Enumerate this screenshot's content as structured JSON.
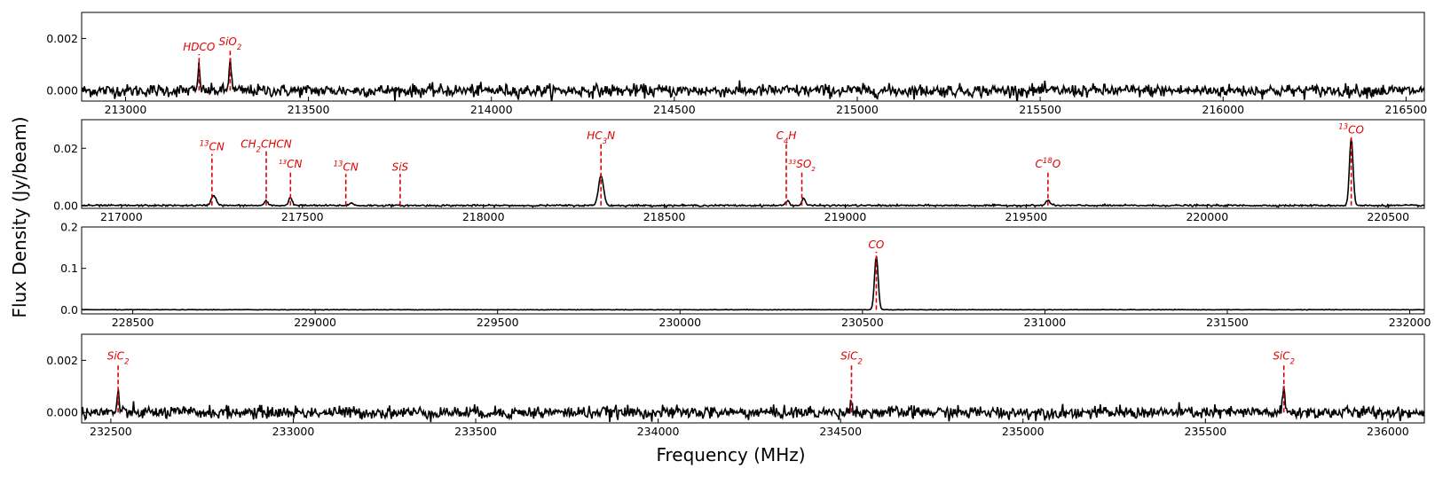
{
  "chart_data": {
    "type": "line",
    "xlabel": "Frequency (MHz)",
    "ylabel": "Flux Density (Jy/beam)",
    "colors": {
      "spectrum": "#000000",
      "line_marker": "#e00000"
    },
    "panels": [
      {
        "xlim": [
          212880,
          216550
        ],
        "ylim": [
          -0.0004,
          0.003
        ],
        "xticks": [
          213000,
          213500,
          214000,
          214500,
          215000,
          215500,
          216000,
          216500
        ],
        "xtick_labels": [
          "213000",
          "213500",
          "214000",
          "214500",
          "215000",
          "215500",
          "216000",
          "216500"
        ],
        "yticks": [
          0.0,
          0.002
        ],
        "ytick_labels": [
          "0.000",
          "0.002"
        ],
        "noise": 0.00012,
        "peaks": [
          {
            "freq": 213201,
            "amp": 0.0009,
            "width": 3.0
          },
          {
            "freq": 213286,
            "amp": 0.0013,
            "width": 3.0
          }
        ],
        "lines": [
          {
            "freq": 213201,
            "top": 0.0014,
            "text": [
              {
                "t": "HDCO"
              }
            ]
          },
          {
            "freq": 213286,
            "top": 0.0016,
            "text": [
              {
                "t": "SiO"
              },
              {
                "t": "2",
                "sub": true
              }
            ]
          }
        ]
      },
      {
        "xlim": [
          216890,
          220600
        ],
        "ylim": [
          -0.001,
          0.03
        ],
        "xticks": [
          217000,
          217500,
          218000,
          218500,
          219000,
          219500,
          220000,
          220500
        ],
        "xtick_labels": [
          "217000",
          "217500",
          "218000",
          "218500",
          "219000",
          "219500",
          "220000",
          "220500"
        ],
        "yticks": [
          0.0,
          0.02
        ],
        "ytick_labels": [
          "0.00",
          "0.02"
        ],
        "noise": 0.00015,
        "peaks": [
          {
            "freq": 217255,
            "amp": 0.0035,
            "width": 7
          },
          {
            "freq": 217400,
            "amp": 0.0015,
            "width": 5
          },
          {
            "freq": 217467,
            "amp": 0.0028,
            "width": 5
          },
          {
            "freq": 217635,
            "amp": 0.0008,
            "width": 6
          },
          {
            "freq": 218325,
            "amp": 0.0105,
            "width": 7
          },
          {
            "freq": 218840,
            "amp": 0.0018,
            "width": 5
          },
          {
            "freq": 218885,
            "amp": 0.0025,
            "width": 5
          },
          {
            "freq": 219560,
            "amp": 0.0018,
            "width": 6
          },
          {
            "freq": 220398,
            "amp": 0.0235,
            "width": 5
          }
        ],
        "lines": [
          {
            "freq": 217250,
            "top": 0.018,
            "text": [
              {
                "t": "13",
                "sup": true
              },
              {
                "t": "CN"
              }
            ]
          },
          {
            "freq": 217400,
            "top": 0.019,
            "text": [
              {
                "t": "CH"
              },
              {
                "t": "2",
                "sub": true
              },
              {
                "t": "CHCN"
              }
            ]
          },
          {
            "freq": 217467,
            "top": 0.012,
            "small": true,
            "text": [
              {
                "t": "13",
                "sup": true
              },
              {
                "t": "CN"
              }
            ]
          },
          {
            "freq": 217620,
            "top": 0.011,
            "text": [
              {
                "t": "13",
                "sup": true
              },
              {
                "t": "CN"
              }
            ]
          },
          {
            "freq": 217770,
            "top": 0.011,
            "text": [
              {
                "t": "SiS"
              }
            ]
          },
          {
            "freq": 218325,
            "top": 0.022,
            "text": [
              {
                "t": "HC"
              },
              {
                "t": "3",
                "sub": true
              },
              {
                "t": "N"
              }
            ]
          },
          {
            "freq": 218837,
            "top": 0.022,
            "text": [
              {
                "t": "C"
              },
              {
                "t": "4",
                "sub": true
              },
              {
                "t": "H"
              }
            ]
          },
          {
            "freq": 218880,
            "top": 0.012,
            "small": true,
            "text": [
              {
                "t": "33",
                "sup": true
              },
              {
                "t": "SO"
              },
              {
                "t": "2",
                "sub": true
              }
            ]
          },
          {
            "freq": 219560,
            "top": 0.012,
            "text": [
              {
                "t": "C"
              },
              {
                "t": "18",
                "sup": true
              },
              {
                "t": "O"
              }
            ]
          },
          {
            "freq": 220398,
            "top": 0.024,
            "text": [
              {
                "t": "13",
                "sup": true
              },
              {
                "t": "CO"
              }
            ]
          }
        ]
      },
      {
        "xlim": [
          228360,
          232040
        ],
        "ylim": [
          -0.01,
          0.2
        ],
        "xticks": [
          228500,
          229000,
          229500,
          230000,
          230500,
          231000,
          231500,
          232000
        ],
        "xtick_labels": [
          "228500",
          "229000",
          "229500",
          "230000",
          "230500",
          "231000",
          "231500",
          "232000"
        ],
        "yticks": [
          0.0,
          0.1,
          0.2
        ],
        "ytick_labels": [
          "0.0",
          "0.1",
          "0.2"
        ],
        "noise": 0.0003,
        "peaks": [
          {
            "freq": 230538,
            "amp": 0.13,
            "width": 5
          }
        ],
        "lines": [
          {
            "freq": 230538,
            "top": 0.14,
            "text": [
              {
                "t": "CO"
              }
            ]
          }
        ]
      },
      {
        "xlim": [
          232420,
          236100
        ],
        "ylim": [
          -0.0004,
          0.003
        ],
        "xticks": [
          232500,
          233000,
          233500,
          234000,
          234500,
          235000,
          235500,
          236000
        ],
        "xtick_labels": [
          "232500",
          "233000",
          "233500",
          "234000",
          "234500",
          "235000",
          "235500",
          "236000"
        ],
        "yticks": [
          0.0,
          0.002
        ],
        "ytick_labels": [
          "0.000",
          "0.002"
        ],
        "noise": 0.00012,
        "peaks": [
          {
            "freq": 232520,
            "amp": 0.0008,
            "width": 3.0
          },
          {
            "freq": 234530,
            "amp": 0.0007,
            "width": 2.5
          },
          {
            "freq": 235715,
            "amp": 0.0009,
            "width": 3.0
          }
        ],
        "lines": [
          {
            "freq": 232520,
            "top": 0.0019,
            "text": [
              {
                "t": "SiC"
              },
              {
                "t": "2",
                "sub": true
              }
            ]
          },
          {
            "freq": 234530,
            "top": 0.0019,
            "text": [
              {
                "t": "SiC"
              },
              {
                "t": "2",
                "sub": true
              }
            ]
          },
          {
            "freq": 235715,
            "top": 0.0019,
            "text": [
              {
                "t": "SiC"
              },
              {
                "t": "2",
                "sub": true
              }
            ]
          }
        ]
      }
    ]
  }
}
